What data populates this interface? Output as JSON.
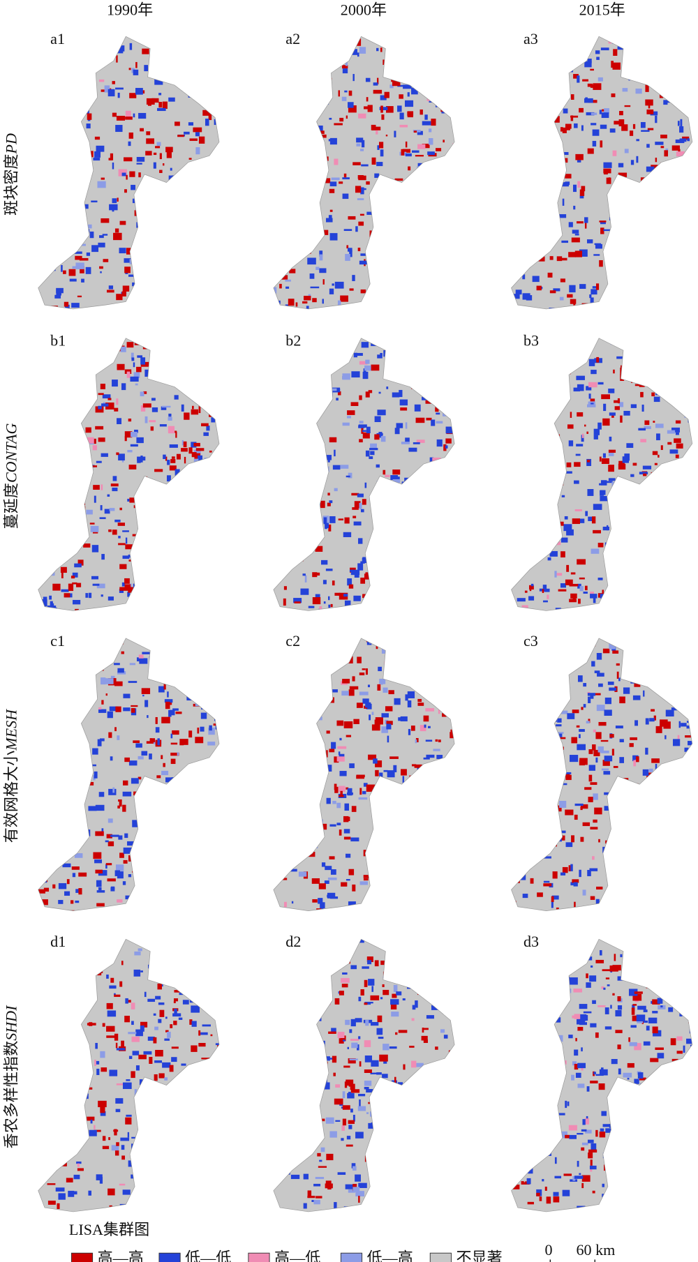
{
  "columns": [
    "1990年",
    "2000年",
    "2015年"
  ],
  "rows": [
    {
      "name": "斑块密度",
      "metric": "PD",
      "panels": [
        "a1",
        "a2",
        "a3"
      ]
    },
    {
      "name": "蔓延度",
      "metric": "CONTAG",
      "panels": [
        "b1",
        "b2",
        "b3"
      ]
    },
    {
      "name": "有效网格大小",
      "metric": "MESH",
      "panels": [
        "c1",
        "c2",
        "c3"
      ]
    },
    {
      "name": "香农多样性指数",
      "metric": "SHDI",
      "panels": [
        "d1",
        "d2",
        "d3"
      ]
    }
  ],
  "legend": {
    "title": "LISA集群图",
    "items": [
      {
        "label": "高—高",
        "color": "#cc0000"
      },
      {
        "label": "低—低",
        "color": "#2442d8"
      },
      {
        "label": "高—低",
        "color": "#f08cb4"
      },
      {
        "label": "低—高",
        "color": "#8c9ce6"
      },
      {
        "label": "不显著",
        "color": "#c8c8c8"
      }
    ]
  },
  "scale_bar": {
    "start": "0",
    "end": "60 km"
  }
}
